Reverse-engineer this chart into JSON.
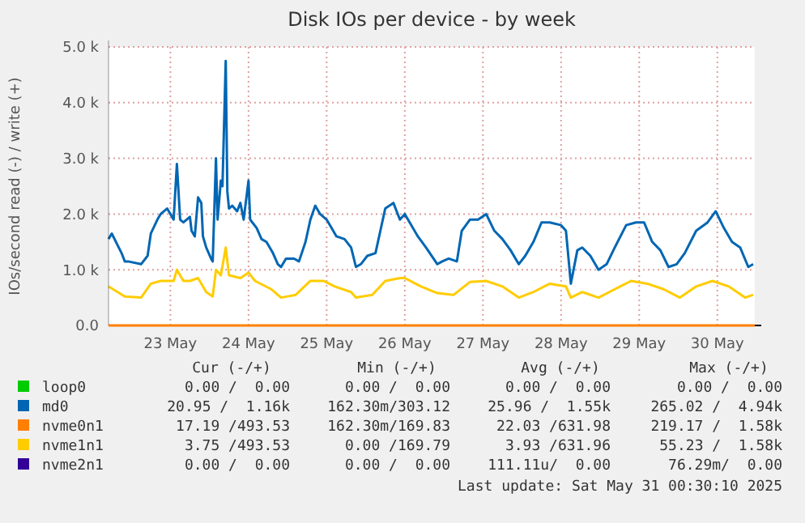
{
  "chart_data": {
    "type": "line",
    "title": "Disk IOs per device - by week",
    "ylabel": "IOs/second read (-) / write (+)",
    "xlim": [
      "2025-05-22T17:00",
      "2025-05-30T23:30"
    ],
    "xticks": [
      {
        "value": "2025-05-23T12:00",
        "label": "23 May"
      },
      {
        "value": "2025-05-24T12:00",
        "label": "24 May"
      },
      {
        "value": "2025-05-25T12:00",
        "label": "25 May"
      },
      {
        "value": "2025-05-26T12:00",
        "label": "26 May"
      },
      {
        "value": "2025-05-27T12:00",
        "label": "27 May"
      },
      {
        "value": "2025-05-28T12:00",
        "label": "28 May"
      },
      {
        "value": "2025-05-29T12:00",
        "label": "29 May"
      },
      {
        "value": "2025-05-30T12:00",
        "label": "30 May"
      }
    ],
    "ylim": [
      0,
      5000
    ],
    "yticks": [
      {
        "value": 0,
        "label": "0.0"
      },
      {
        "value": 1000,
        "label": "1.0 k"
      },
      {
        "value": 2000,
        "label": "2.0 k"
      },
      {
        "value": 3000,
        "label": "3.0 k"
      },
      {
        "value": 4000,
        "label": "4.0 k"
      },
      {
        "value": 5000,
        "label": "5.0 k"
      }
    ],
    "grid": true,
    "legend": "bottom",
    "line_style": "solid",
    "marker": "none",
    "series": [
      {
        "name": "loop0",
        "color": "#00cc00"
      },
      {
        "name": "md0",
        "color": "#0066b3",
        "x": [
          "2025-05-22T17:00",
          "2025-05-22T18:00",
          "2025-05-22T21:00",
          "2025-05-22T22:00",
          "2025-05-22T23:00",
          "2025-05-23T03:00",
          "2025-05-23T05:00",
          "2025-05-23T06:00",
          "2025-05-23T08:00",
          "2025-05-23T09:00",
          "2025-05-23T11:00",
          "2025-05-23T13:00",
          "2025-05-23T14:00",
          "2025-05-23T15:00",
          "2025-05-23T16:00",
          "2025-05-23T18:00",
          "2025-05-23T18:30",
          "2025-05-23T19:30",
          "2025-05-23T20:30",
          "2025-05-23T21:30",
          "2025-05-23T22:00",
          "2025-05-23T23:00",
          "2025-05-24T00:30",
          "2025-05-24T01:00",
          "2025-05-24T02:00",
          "2025-05-24T02:30",
          "2025-05-24T03:30",
          "2025-05-24T04:00",
          "2025-05-24T05:00",
          "2025-05-24T05:30",
          "2025-05-24T06:00",
          "2025-05-24T07:00",
          "2025-05-24T08:30",
          "2025-05-24T09:30",
          "2025-05-24T10:30",
          "2025-05-24T12:00",
          "2025-05-24T12:30",
          "2025-05-24T14:30",
          "2025-05-24T16:00",
          "2025-05-24T17:30",
          "2025-05-24T19:30",
          "2025-05-24T21:00",
          "2025-05-24T22:00",
          "2025-05-24T23:30",
          "2025-05-25T02:00",
          "2025-05-25T03:30",
          "2025-05-25T05:30",
          "2025-05-25T07:00",
          "2025-05-25T08:30",
          "2025-05-25T10:00",
          "2025-05-25T12:00",
          "2025-05-25T13:30",
          "2025-05-25T15:00",
          "2025-05-25T17:30",
          "2025-05-25T19:30",
          "2025-05-25T21:00",
          "2025-05-25T22:30",
          "2025-05-26T00:30",
          "2025-05-26T03:00",
          "2025-05-26T04:30",
          "2025-05-26T06:00",
          "2025-05-26T08:30",
          "2025-05-26T10:30",
          "2025-05-26T12:00",
          "2025-05-26T13:30",
          "2025-05-26T16:00",
          "2025-05-26T18:30",
          "2025-05-26T22:00",
          "2025-05-26T23:30",
          "2025-05-27T01:30",
          "2025-05-27T04:00",
          "2025-05-27T05:30",
          "2025-05-27T08:00",
          "2025-05-27T10:30",
          "2025-05-27T13:00",
          "2025-05-27T15:30",
          "2025-05-27T18:00",
          "2025-05-27T20:30",
          "2025-05-27T23:00",
          "2025-05-28T01:00",
          "2025-05-28T03:30",
          "2025-05-28T06:00",
          "2025-05-28T08:30",
          "2025-05-28T12:00",
          "2025-05-28T13:30",
          "2025-05-28T15:00",
          "2025-05-28T17:00",
          "2025-05-28T18:30",
          "2025-05-28T21:00",
          "2025-05-28T23:30",
          "2025-05-29T02:00",
          "2025-05-29T04:30",
          "2025-05-29T08:00",
          "2025-05-29T11:00",
          "2025-05-29T13:30",
          "2025-05-29T16:00",
          "2025-05-29T18:30",
          "2025-05-29T21:00",
          "2025-05-29T23:30",
          "2025-05-30T02:00",
          "2025-05-30T05:30",
          "2025-05-30T09:00",
          "2025-05-30T11:30",
          "2025-05-30T14:00",
          "2025-05-30T16:30",
          "2025-05-30T19:00",
          "2025-05-30T21:30",
          "2025-05-30T23:00"
        ],
        "values": [
          1550,
          1650,
          1300,
          1150,
          1150,
          1100,
          1250,
          1650,
          1900,
          2000,
          2100,
          1900,
          2900,
          1900,
          1850,
          1950,
          1700,
          1600,
          2300,
          2200,
          1600,
          1400,
          1200,
          1150,
          3000,
          1900,
          2600,
          2500,
          4750,
          2400,
          2100,
          2150,
          2050,
          2200,
          1900,
          2600,
          1900,
          1750,
          1550,
          1500,
          1300,
          1100,
          1050,
          1200,
          1200,
          1150,
          1500,
          1900,
          2150,
          2000,
          1900,
          1750,
          1600,
          1550,
          1400,
          1050,
          1100,
          1250,
          1300,
          1700,
          2100,
          2200,
          1900,
          2000,
          1850,
          1600,
          1400,
          1100,
          1150,
          1200,
          1150,
          1700,
          1900,
          1900,
          2000,
          1700,
          1550,
          1350,
          1100,
          1250,
          1500,
          1850,
          1850,
          1800,
          1700,
          750,
          1350,
          1400,
          1250,
          1000,
          1100,
          1400,
          1800,
          1850,
          1850,
          1500,
          1350,
          1050,
          1100,
          1300,
          1700,
          1850,
          2050,
          1750,
          1500,
          1400,
          1050,
          1100
        ]
      },
      {
        "name": "nvme0n1",
        "color": "#ff8000",
        "x": [
          "2025-05-22T17:00",
          "2025-05-30T23:30"
        ],
        "values": [
          0,
          0
        ]
      },
      {
        "name": "nvme1n1",
        "color": "#ffcc00",
        "x": [
          "2025-05-22T17:00",
          "2025-05-22T22:00",
          "2025-05-23T03:00",
          "2025-05-23T06:00",
          "2025-05-23T09:00",
          "2025-05-23T13:00",
          "2025-05-23T14:00",
          "2025-05-23T16:00",
          "2025-05-23T18:00",
          "2025-05-23T20:30",
          "2025-05-23T23:00",
          "2025-05-24T01:00",
          "2025-05-24T02:00",
          "2025-05-24T03:30",
          "2025-05-24T05:00",
          "2025-05-24T06:00",
          "2025-05-24T09:30",
          "2025-05-24T12:00",
          "2025-05-24T14:00",
          "2025-05-24T19:00",
          "2025-05-24T22:00",
          "2025-05-25T02:30",
          "2025-05-25T07:00",
          "2025-05-25T11:00",
          "2025-05-25T14:30",
          "2025-05-25T19:30",
          "2025-05-25T21:00",
          "2025-05-26T02:00",
          "2025-05-26T06:00",
          "2025-05-26T10:30",
          "2025-05-26T12:00",
          "2025-05-26T17:00",
          "2025-05-26T22:00",
          "2025-05-27T03:00",
          "2025-05-27T08:00",
          "2025-05-27T13:00",
          "2025-05-27T18:00",
          "2025-05-27T23:00",
          "2025-05-28T03:30",
          "2025-05-28T08:30",
          "2025-05-28T13:30",
          "2025-05-28T15:00",
          "2025-05-28T18:30",
          "2025-05-28T23:30",
          "2025-05-29T04:30",
          "2025-05-29T09:30",
          "2025-05-29T14:30",
          "2025-05-29T19:30",
          "2025-05-30T00:30",
          "2025-05-30T05:30",
          "2025-05-30T10:30",
          "2025-05-30T15:30",
          "2025-05-30T20:30",
          "2025-05-30T23:00"
        ],
        "values": [
          700,
          520,
          500,
          750,
          800,
          800,
          1000,
          800,
          800,
          850,
          600,
          520,
          1000,
          900,
          1400,
          900,
          850,
          950,
          800,
          650,
          500,
          550,
          800,
          800,
          700,
          600,
          500,
          550,
          800,
          850,
          850,
          700,
          580,
          550,
          780,
          800,
          700,
          500,
          600,
          750,
          700,
          500,
          600,
          500,
          650,
          800,
          750,
          650,
          500,
          700,
          800,
          700,
          500,
          550
        ]
      },
      {
        "name": "nvme2n1",
        "color": "#330099"
      }
    ],
    "annotations": [
      "Cur (-/+)",
      "Min (-/+)",
      "Avg (-/+)",
      "Max (-/+)",
      "0.00 /  0.00",
      "0.00 /  0.00",
      "0.00 /  0.00",
      "0.00 /  0.00",
      "20.95 /  1.16k",
      "162.30m/303.12",
      "25.96 /  1.55k",
      "265.02 /  4.94k",
      "17.19 /493.53",
      "162.30m/169.83",
      "22.03 /631.98",
      "219.17 /  1.58k",
      "3.75 /493.53",
      "0.00 /169.79",
      "3.93 /631.96",
      "55.23 /  1.58k",
      "0.00 /  0.00",
      "0.00 /  0.00",
      "111.11u/  0.00",
      "76.29m/  0.00",
      "Last update: Sat May 31 00:30:10 2025"
    ]
  }
}
